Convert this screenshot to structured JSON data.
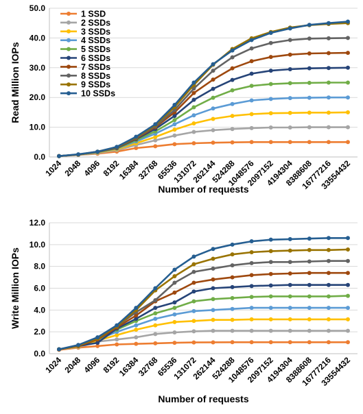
{
  "chart_data": [
    {
      "type": "line",
      "title": "",
      "xlabel": "Number of requests",
      "ylabel": "Read Million IOPs",
      "x": [
        "1024",
        "2048",
        "4096",
        "8192",
        "16384",
        "32768",
        "65536",
        "131072",
        "262144",
        "524288",
        "1048576",
        "2097152",
        "4194304",
        "8388608",
        "16777216",
        "33554432"
      ],
      "ylim": [
        0,
        50
      ],
      "yticks": [
        "0.0",
        "10.0",
        "20.0",
        "30.0",
        "40.0",
        "50.0"
      ],
      "grid": "horizontal",
      "legend": "top-left",
      "series": [
        {
          "name": "1 SSD",
          "color": "#ED7D31",
          "values": [
            0.3,
            0.7,
            1.1,
            1.8,
            3.0,
            3.6,
            4.3,
            4.6,
            4.8,
            4.9,
            5.0,
            5.0,
            5.0,
            5.0,
            5.0,
            5.0
          ]
        },
        {
          "name": "2 SSDs",
          "color": "#A5A5A5",
          "values": [
            0.3,
            0.7,
            1.3,
            2.3,
            4.0,
            5.6,
            7.2,
            8.4,
            9.0,
            9.4,
            9.7,
            9.9,
            9.9,
            10.0,
            10.0,
            10.0
          ]
        },
        {
          "name": "3 SSDs",
          "color": "#FFC000",
          "values": [
            0.3,
            0.8,
            1.5,
            2.6,
            4.6,
            6.7,
            9.2,
            11.3,
            12.8,
            13.8,
            14.4,
            14.7,
            14.8,
            14.9,
            14.9,
            15.0
          ]
        },
        {
          "name": "4 SSDs",
          "color": "#5B9BD5",
          "values": [
            0.3,
            0.8,
            1.6,
            2.8,
            5.2,
            7.8,
            11.0,
            14.0,
            16.3,
            17.8,
            19.0,
            19.5,
            19.8,
            19.9,
            20.0,
            20.0
          ]
        },
        {
          "name": "5 SSDs",
          "color": "#70AD47",
          "values": [
            0.3,
            0.8,
            1.6,
            2.9,
            5.6,
            8.6,
            12.4,
            16.7,
            19.9,
            22.4,
            23.9,
            24.5,
            24.8,
            24.9,
            25.0,
            25.0
          ]
        },
        {
          "name": "6 SSDs",
          "color": "#264478",
          "values": [
            0.3,
            0.8,
            1.7,
            3.0,
            6.0,
            9.4,
            13.8,
            19.2,
            22.9,
            25.9,
            28.0,
            29.0,
            29.5,
            29.8,
            29.9,
            30.0
          ]
        },
        {
          "name": "7 SSDs",
          "color": "#9E480E",
          "values": [
            0.3,
            0.8,
            1.7,
            3.1,
            6.2,
            10.0,
            15.0,
            21.5,
            26.0,
            29.8,
            32.2,
            33.6,
            34.4,
            34.8,
            34.9,
            35.0
          ]
        },
        {
          "name": "8 SSDs",
          "color": "#636363",
          "values": [
            0.3,
            0.8,
            1.7,
            3.2,
            6.4,
            10.3,
            15.8,
            23.0,
            29.0,
            33.5,
            36.5,
            38.3,
            39.3,
            39.8,
            39.9,
            40.0
          ]
        },
        {
          "name": "9 SSDs",
          "color": "#997300",
          "values": [
            0.3,
            0.8,
            1.8,
            3.3,
            6.6,
            10.7,
            16.8,
            24.2,
            31.0,
            36.3,
            39.9,
            42.0,
            43.5,
            44.3,
            44.7,
            45.0
          ]
        },
        {
          "name": "10 SSDs",
          "color": "#255E91",
          "values": [
            0.3,
            0.9,
            1.8,
            3.4,
            6.8,
            11.0,
            17.5,
            25.0,
            31.2,
            35.8,
            39.3,
            41.7,
            43.2,
            44.4,
            45.0,
            45.5
          ]
        }
      ]
    },
    {
      "type": "line",
      "title": "",
      "xlabel": "Number of requests",
      "ylabel": "Write Million IOPs",
      "x": [
        "1024",
        "2048",
        "4096",
        "8192",
        "16384",
        "32768",
        "65536",
        "131072",
        "262144",
        "524288",
        "1048576",
        "2097152",
        "4194304",
        "8388608",
        "16777216",
        "33554432"
      ],
      "ylim": [
        0,
        12
      ],
      "yticks": [
        "0.0",
        "2.0",
        "4.0",
        "6.0",
        "8.0",
        "10.0",
        "12.0"
      ],
      "grid": "horizontal",
      "legend": "none",
      "series": [
        {
          "name": "1 SSD",
          "color": "#ED7D31",
          "values": [
            0.35,
            0.55,
            0.7,
            0.85,
            0.9,
            0.95,
            1.0,
            1.03,
            1.04,
            1.05,
            1.05,
            1.05,
            1.05,
            1.05,
            1.05,
            1.05
          ]
        },
        {
          "name": "2 SSDs",
          "color": "#A5A5A5",
          "values": [
            0.4,
            0.6,
            1.1,
            1.3,
            1.5,
            1.8,
            1.95,
            2.05,
            2.1,
            2.1,
            2.1,
            2.1,
            2.1,
            2.1,
            2.1,
            2.1
          ]
        },
        {
          "name": "3 SSDs",
          "color": "#FFC000",
          "values": [
            0.4,
            0.65,
            1.2,
            1.7,
            2.2,
            2.6,
            2.9,
            3.0,
            3.1,
            3.1,
            3.15,
            3.15,
            3.15,
            3.15,
            3.15,
            3.15
          ]
        },
        {
          "name": "4 SSDs",
          "color": "#5B9BD5",
          "values": [
            0.4,
            0.7,
            1.3,
            2.0,
            2.6,
            3.2,
            3.6,
            3.9,
            4.0,
            4.1,
            4.2,
            4.2,
            4.2,
            4.2,
            4.2,
            4.2
          ]
        },
        {
          "name": "5 SSDs",
          "color": "#70AD47",
          "values": [
            0.4,
            0.7,
            1.3,
            2.2,
            3.0,
            3.7,
            4.2,
            4.8,
            5.0,
            5.1,
            5.2,
            5.25,
            5.25,
            5.25,
            5.25,
            5.3
          ]
        },
        {
          "name": "6 SSDs",
          "color": "#264478",
          "values": [
            0.4,
            0.7,
            1.0,
            2.3,
            3.2,
            4.2,
            4.7,
            5.7,
            6.0,
            6.1,
            6.2,
            6.25,
            6.3,
            6.3,
            6.3,
            6.3
          ]
        },
        {
          "name": "7 SSDs",
          "color": "#9E480E",
          "values": [
            0.4,
            0.7,
            1.3,
            2.4,
            3.5,
            4.8,
            5.6,
            6.5,
            6.8,
            7.0,
            7.2,
            7.3,
            7.35,
            7.4,
            7.4,
            7.4
          ]
        },
        {
          "name": "8 SSDs",
          "color": "#636363",
          "values": [
            0.4,
            0.75,
            1.4,
            2.5,
            3.8,
            4.9,
            6.5,
            7.5,
            7.8,
            8.1,
            8.3,
            8.4,
            8.4,
            8.45,
            8.5,
            8.5
          ]
        },
        {
          "name": "9 SSDs",
          "color": "#997300",
          "values": [
            0.4,
            0.75,
            1.4,
            2.5,
            4.0,
            5.8,
            7.1,
            8.2,
            8.7,
            9.1,
            9.3,
            9.4,
            9.45,
            9.5,
            9.5,
            9.55
          ]
        },
        {
          "name": "10 SSDs",
          "color": "#255E91",
          "values": [
            0.4,
            0.8,
            1.5,
            2.6,
            4.2,
            6.0,
            7.7,
            8.9,
            9.6,
            10.0,
            10.3,
            10.45,
            10.5,
            10.55,
            10.6,
            10.6
          ]
        }
      ]
    }
  ]
}
